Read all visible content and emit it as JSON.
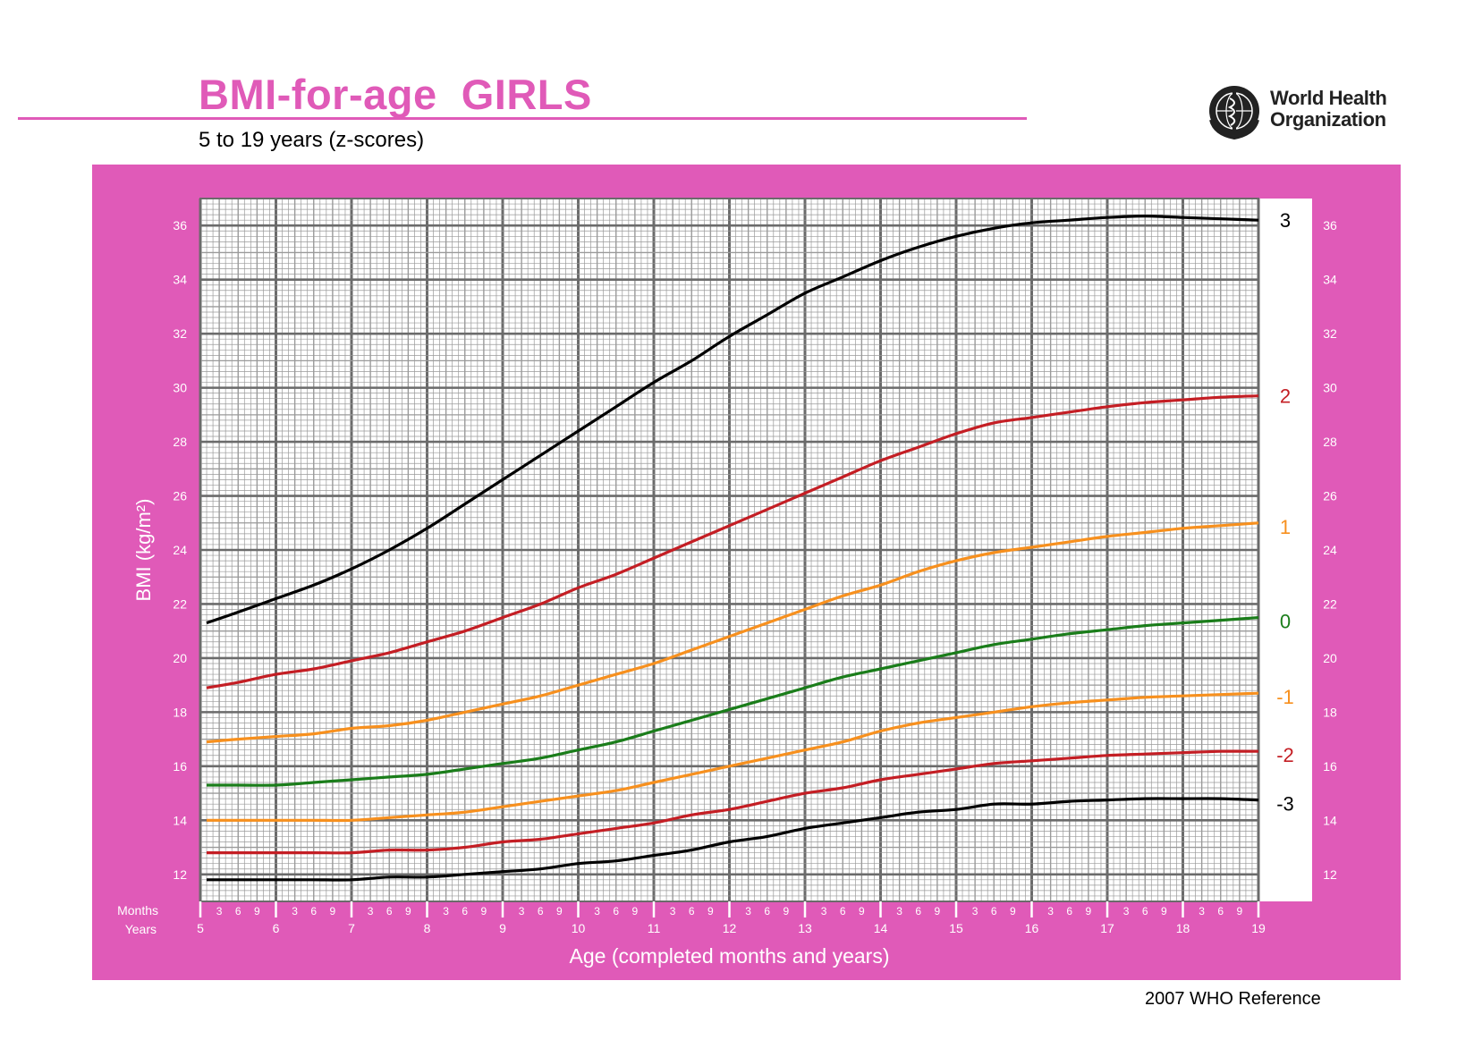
{
  "page": {
    "title": "BMI-for-age  GIRLS",
    "subtitle": "5 to 19 years (z-scores)",
    "footer": "2007 WHO Reference",
    "logo_line1": "World Health",
    "logo_line2": "Organization",
    "colors": {
      "brand_pink": "#e05ab8",
      "frame_pink": "#e05ab8",
      "grid_major": "#6b6b6b",
      "grid_minor": "#9a9a9a"
    }
  },
  "chart_data": {
    "type": "line",
    "title": "BMI-for-age  GIRLS",
    "subtitle": "5 to 19 years (z-scores)",
    "xlabel": "Age (completed months and years)",
    "ylabel": "BMI (kg/m²)",
    "xlim": [
      5,
      19
    ],
    "ylim": [
      11,
      37
    ],
    "y_ticks": [
      12,
      14,
      16,
      18,
      20,
      22,
      24,
      26,
      28,
      30,
      32,
      34,
      36
    ],
    "x_ticks": [
      5,
      6,
      7,
      8,
      9,
      10,
      11,
      12,
      13,
      14,
      15,
      16,
      17,
      18,
      19
    ],
    "month_ticks": [
      "3",
      "6",
      "9"
    ],
    "row_labels": {
      "months": "Months",
      "years": "Years"
    },
    "grid": true,
    "x": [
      5,
      5.5,
      6,
      6.5,
      7,
      7.5,
      8,
      8.5,
      9,
      9.5,
      10,
      10.5,
      11,
      11.5,
      12,
      12.5,
      13,
      13.5,
      14,
      14.5,
      15,
      15.5,
      16,
      16.5,
      17,
      17.5,
      18,
      18.5,
      19
    ],
    "series": [
      {
        "name": "3",
        "color": "#000000",
        "values": [
          21.3,
          21.7,
          22.2,
          22.7,
          23.3,
          24.0,
          24.8,
          25.7,
          26.6,
          27.5,
          28.4,
          29.3,
          30.2,
          31.0,
          31.9,
          32.7,
          33.5,
          34.1,
          34.7,
          35.2,
          35.6,
          35.9,
          36.1,
          36.2,
          36.3,
          36.35,
          36.3,
          36.25,
          36.2
        ]
      },
      {
        "name": "2",
        "color": "#c41e24",
        "values": [
          18.9,
          19.1,
          19.4,
          19.6,
          19.9,
          20.2,
          20.6,
          21.0,
          21.5,
          22.0,
          22.6,
          23.1,
          23.7,
          24.3,
          24.9,
          25.5,
          26.1,
          26.7,
          27.3,
          27.8,
          28.3,
          28.7,
          28.9,
          29.1,
          29.3,
          29.45,
          29.55,
          29.65,
          29.7
        ]
      },
      {
        "name": "1",
        "color": "#f7901e",
        "values": [
          16.9,
          17.0,
          17.1,
          17.2,
          17.4,
          17.5,
          17.7,
          18.0,
          18.3,
          18.6,
          19.0,
          19.4,
          19.8,
          20.3,
          20.8,
          21.3,
          21.8,
          22.3,
          22.7,
          23.2,
          23.6,
          23.9,
          24.1,
          24.3,
          24.5,
          24.65,
          24.8,
          24.9,
          25.0
        ]
      },
      {
        "name": "0",
        "color": "#1a7d1a",
        "values": [
          15.3,
          15.3,
          15.3,
          15.4,
          15.5,
          15.6,
          15.7,
          15.9,
          16.1,
          16.3,
          16.6,
          16.9,
          17.3,
          17.7,
          18.1,
          18.5,
          18.9,
          19.3,
          19.6,
          19.9,
          20.2,
          20.5,
          20.7,
          20.9,
          21.05,
          21.2,
          21.3,
          21.4,
          21.5
        ]
      },
      {
        "name": "-1",
        "color": "#f7901e",
        "values": [
          14.0,
          14.0,
          14.0,
          14.0,
          14.0,
          14.1,
          14.2,
          14.3,
          14.5,
          14.7,
          14.9,
          15.1,
          15.4,
          15.7,
          16.0,
          16.3,
          16.6,
          16.9,
          17.3,
          17.6,
          17.8,
          18.0,
          18.2,
          18.35,
          18.45,
          18.55,
          18.6,
          18.65,
          18.7
        ]
      },
      {
        "name": "-2",
        "color": "#c41e24",
        "values": [
          12.8,
          12.8,
          12.8,
          12.8,
          12.8,
          12.9,
          12.9,
          13.0,
          13.2,
          13.3,
          13.5,
          13.7,
          13.9,
          14.2,
          14.4,
          14.7,
          15.0,
          15.2,
          15.5,
          15.7,
          15.9,
          16.1,
          16.2,
          16.3,
          16.4,
          16.45,
          16.5,
          16.55,
          16.55
        ]
      },
      {
        "name": "-3",
        "color": "#000000",
        "values": [
          11.8,
          11.8,
          11.8,
          11.8,
          11.8,
          11.9,
          11.9,
          12.0,
          12.1,
          12.2,
          12.4,
          12.5,
          12.7,
          12.9,
          13.2,
          13.4,
          13.7,
          13.9,
          14.1,
          14.3,
          14.4,
          14.6,
          14.6,
          14.7,
          14.75,
          14.8,
          14.8,
          14.8,
          14.75
        ]
      }
    ]
  }
}
